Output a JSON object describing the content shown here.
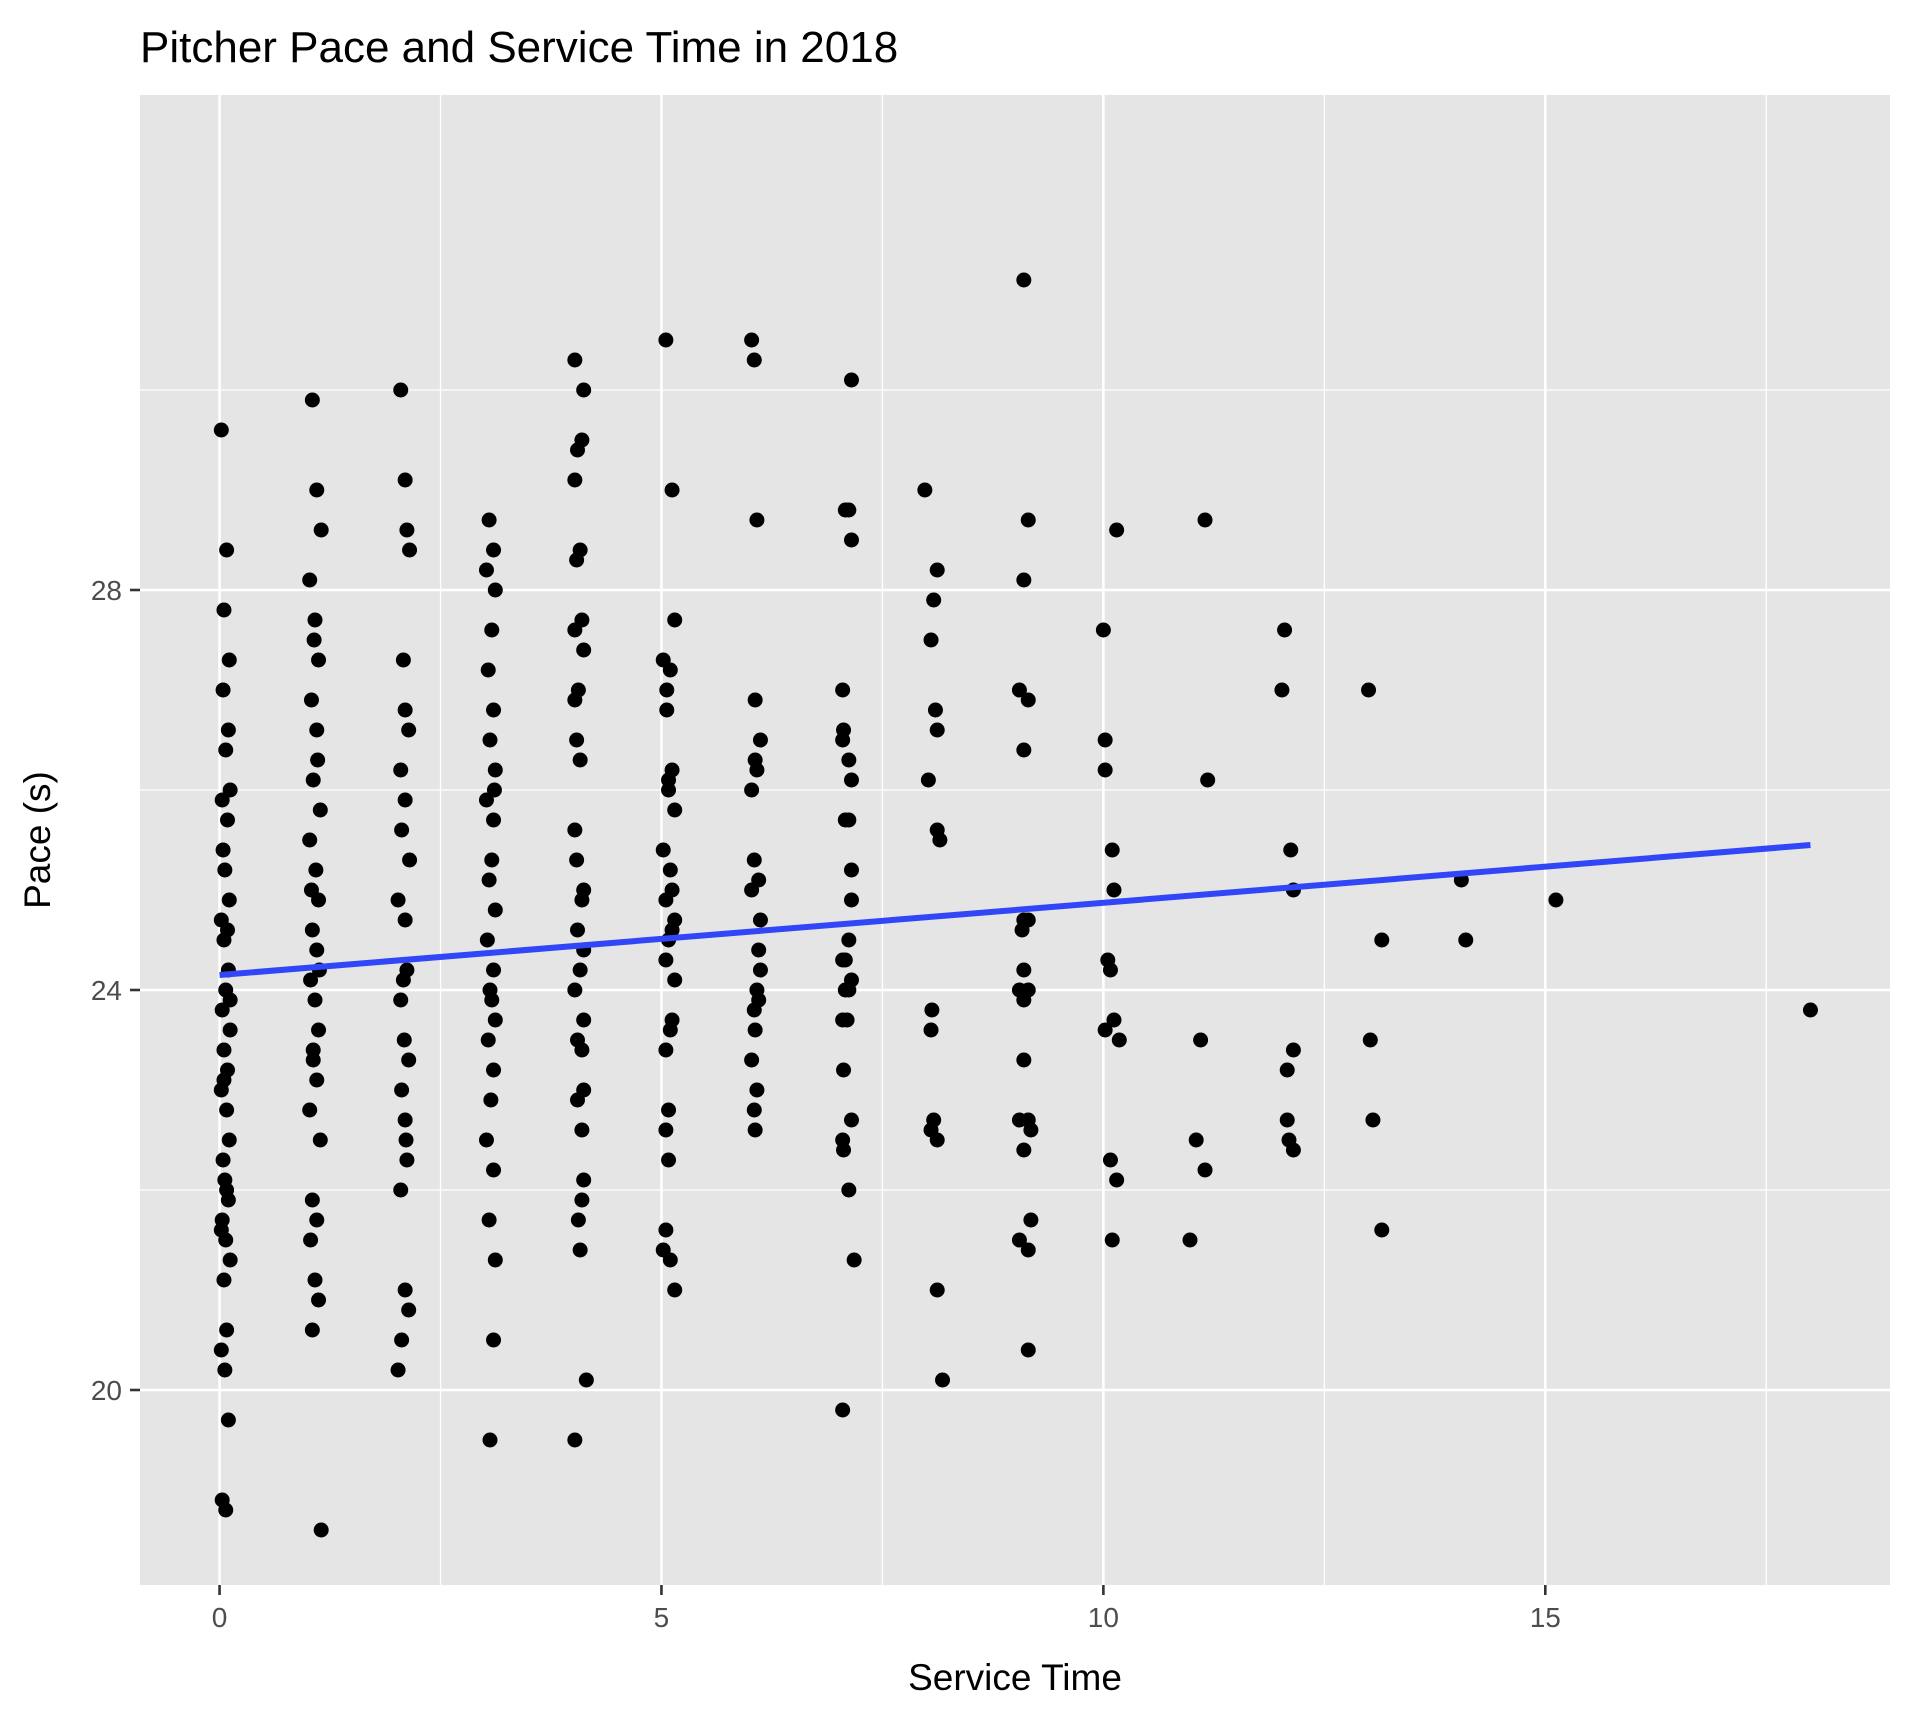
{
  "chart_data": {
    "type": "scatter",
    "title": "Pitcher Pace and Service Time in 2018",
    "xlabel": "Service Time",
    "ylabel": "Pace (s)",
    "xlim": [
      -0.9,
      18.9
    ],
    "ylim": [
      18.05,
      32.95
    ],
    "x_ticks": [
      0,
      5,
      10,
      15
    ],
    "x_tick_labels": [
      "0",
      "5",
      "10",
      "15"
    ],
    "y_ticks": [
      20,
      24,
      28
    ],
    "y_tick_labels": [
      "20",
      "24",
      "28"
    ],
    "grid": true,
    "legend": "none",
    "colors": {
      "panel": "#e5e5e5",
      "grid": "#ffffff",
      "points": "#000000",
      "fit": "#3146f7"
    },
    "fit_line": {
      "x": [
        0,
        18
      ],
      "y": [
        24.15,
        25.45
      ],
      "method": "lm"
    },
    "points": [
      [
        0.02,
        29.6
      ],
      [
        0.05,
        27.8
      ],
      [
        0.08,
        28.4
      ],
      [
        0.1,
        26.6
      ],
      [
        0.04,
        27.0
      ],
      [
        0.07,
        26.4
      ],
      [
        0.12,
        26.0
      ],
      [
        0.03,
        25.9
      ],
      [
        0.09,
        25.7
      ],
      [
        0.06,
        25.2
      ],
      [
        0.11,
        24.9
      ],
      [
        0.02,
        24.7
      ],
      [
        0.05,
        24.5
      ],
      [
        0.1,
        24.2
      ],
      [
        0.07,
        24.0
      ],
      [
        0.03,
        23.8
      ],
      [
        0.12,
        23.6
      ],
      [
        0.05,
        23.4
      ],
      [
        0.09,
        23.2
      ],
      [
        0.02,
        23.0
      ],
      [
        0.08,
        22.8
      ],
      [
        0.11,
        22.5
      ],
      [
        0.04,
        22.3
      ],
      [
        0.06,
        22.1
      ],
      [
        0.1,
        21.9
      ],
      [
        0.03,
        21.7
      ],
      [
        0.07,
        21.5
      ],
      [
        0.12,
        21.3
      ],
      [
        0.05,
        21.1
      ],
      [
        0.08,
        20.6
      ],
      [
        0.02,
        20.4
      ],
      [
        0.06,
        20.2
      ],
      [
        0.1,
        19.7
      ],
      [
        0.03,
        18.9
      ],
      [
        0.07,
        18.8
      ],
      [
        0.11,
        27.3
      ],
      [
        0.04,
        25.4
      ],
      [
        0.09,
        24.6
      ],
      [
        0.12,
        23.9
      ],
      [
        0.05,
        23.1
      ],
      [
        0.08,
        22.0
      ],
      [
        0.02,
        21.6
      ],
      [
        1.05,
        29.9
      ],
      [
        1.1,
        29.0
      ],
      [
        1.15,
        28.6
      ],
      [
        1.02,
        28.1
      ],
      [
        1.08,
        27.7
      ],
      [
        1.12,
        27.3
      ],
      [
        1.04,
        26.9
      ],
      [
        1.1,
        26.6
      ],
      [
        1.06,
        26.1
      ],
      [
        1.14,
        25.8
      ],
      [
        1.02,
        25.5
      ],
      [
        1.09,
        25.2
      ],
      [
        1.12,
        24.9
      ],
      [
        1.05,
        24.6
      ],
      [
        1.1,
        24.4
      ],
      [
        1.03,
        24.1
      ],
      [
        1.08,
        23.9
      ],
      [
        1.12,
        23.6
      ],
      [
        1.06,
        23.3
      ],
      [
        1.1,
        23.1
      ],
      [
        1.02,
        22.8
      ],
      [
        1.14,
        22.5
      ],
      [
        1.05,
        21.9
      ],
      [
        1.1,
        21.7
      ],
      [
        1.03,
        21.5
      ],
      [
        1.08,
        21.1
      ],
      [
        1.12,
        20.9
      ],
      [
        1.05,
        20.6
      ],
      [
        1.15,
        18.6
      ],
      [
        1.07,
        27.5
      ],
      [
        1.11,
        26.3
      ],
      [
        1.04,
        25.0
      ],
      [
        1.13,
        24.2
      ],
      [
        1.06,
        23.4
      ],
      [
        2.05,
        30.0
      ],
      [
        2.1,
        29.1
      ],
      [
        2.12,
        28.6
      ],
      [
        2.15,
        28.4
      ],
      [
        2.08,
        27.3
      ],
      [
        2.1,
        26.8
      ],
      [
        2.14,
        26.6
      ],
      [
        2.05,
        26.2
      ],
      [
        2.1,
        25.9
      ],
      [
        2.06,
        25.6
      ],
      [
        2.15,
        25.3
      ],
      [
        2.02,
        24.9
      ],
      [
        2.1,
        24.7
      ],
      [
        2.12,
        24.2
      ],
      [
        2.05,
        23.9
      ],
      [
        2.09,
        23.5
      ],
      [
        2.14,
        23.3
      ],
      [
        2.06,
        23.0
      ],
      [
        2.1,
        22.7
      ],
      [
        2.12,
        22.3
      ],
      [
        2.05,
        22.0
      ],
      [
        2.1,
        21.0
      ],
      [
        2.14,
        20.8
      ],
      [
        2.06,
        20.5
      ],
      [
        2.02,
        20.2
      ],
      [
        2.08,
        24.1
      ],
      [
        2.11,
        22.5
      ],
      [
        3.05,
        28.7
      ],
      [
        3.1,
        28.4
      ],
      [
        3.02,
        28.2
      ],
      [
        3.12,
        28.0
      ],
      [
        3.08,
        27.6
      ],
      [
        3.04,
        27.2
      ],
      [
        3.1,
        26.8
      ],
      [
        3.06,
        26.5
      ],
      [
        3.12,
        26.2
      ],
      [
        3.02,
        25.9
      ],
      [
        3.1,
        25.7
      ],
      [
        3.08,
        25.3
      ],
      [
        3.05,
        25.1
      ],
      [
        3.12,
        24.8
      ],
      [
        3.03,
        24.5
      ],
      [
        3.1,
        24.2
      ],
      [
        3.06,
        24.0
      ],
      [
        3.12,
        23.7
      ],
      [
        3.04,
        23.5
      ],
      [
        3.1,
        23.2
      ],
      [
        3.07,
        22.9
      ],
      [
        3.02,
        22.5
      ],
      [
        3.1,
        22.2
      ],
      [
        3.05,
        21.7
      ],
      [
        3.12,
        21.3
      ],
      [
        3.1,
        20.5
      ],
      [
        3.06,
        19.5
      ],
      [
        3.08,
        23.9
      ],
      [
        3.11,
        26.0
      ],
      [
        4.02,
        30.3
      ],
      [
        4.12,
        30.0
      ],
      [
        4.1,
        29.5
      ],
      [
        4.05,
        29.4
      ],
      [
        4.02,
        29.1
      ],
      [
        4.08,
        28.4
      ],
      [
        4.04,
        28.3
      ],
      [
        4.1,
        27.7
      ],
      [
        4.02,
        27.6
      ],
      [
        4.12,
        27.4
      ],
      [
        4.06,
        27.0
      ],
      [
        4.02,
        26.9
      ],
      [
        4.04,
        26.5
      ],
      [
        4.02,
        25.6
      ],
      [
        4.04,
        25.3
      ],
      [
        4.12,
        25.0
      ],
      [
        4.1,
        24.9
      ],
      [
        4.05,
        24.6
      ],
      [
        4.12,
        24.4
      ],
      [
        4.08,
        24.2
      ],
      [
        4.02,
        24.0
      ],
      [
        4.12,
        23.7
      ],
      [
        4.05,
        23.5
      ],
      [
        4.1,
        23.4
      ],
      [
        4.12,
        23.0
      ],
      [
        4.05,
        22.9
      ],
      [
        4.1,
        22.6
      ],
      [
        4.12,
        22.1
      ],
      [
        4.06,
        21.7
      ],
      [
        4.08,
        21.4
      ],
      [
        4.15,
        20.1
      ],
      [
        4.02,
        19.5
      ],
      [
        4.08,
        26.3
      ],
      [
        4.1,
        21.9
      ],
      [
        5.05,
        30.5
      ],
      [
        5.12,
        29.0
      ],
      [
        5.15,
        27.7
      ],
      [
        5.02,
        27.3
      ],
      [
        5.1,
        27.2
      ],
      [
        5.06,
        26.8
      ],
      [
        5.12,
        26.2
      ],
      [
        5.08,
        26.0
      ],
      [
        5.15,
        25.8
      ],
      [
        5.02,
        25.4
      ],
      [
        5.1,
        25.2
      ],
      [
        5.12,
        25.0
      ],
      [
        5.05,
        24.9
      ],
      [
        5.15,
        24.7
      ],
      [
        5.08,
        24.5
      ],
      [
        5.05,
        24.3
      ],
      [
        5.15,
        24.1
      ],
      [
        5.12,
        23.7
      ],
      [
        5.1,
        23.6
      ],
      [
        5.05,
        23.4
      ],
      [
        5.08,
        22.8
      ],
      [
        5.05,
        22.6
      ],
      [
        5.08,
        22.3
      ],
      [
        5.05,
        21.6
      ],
      [
        5.02,
        21.4
      ],
      [
        5.1,
        21.3
      ],
      [
        5.15,
        21.0
      ],
      [
        5.08,
        26.1
      ],
      [
        5.12,
        24.6
      ],
      [
        5.06,
        27.0
      ],
      [
        6.02,
        30.5
      ],
      [
        6.05,
        30.3
      ],
      [
        6.08,
        28.7
      ],
      [
        6.06,
        26.9
      ],
      [
        6.12,
        26.5
      ],
      [
        6.06,
        26.3
      ],
      [
        6.02,
        26.0
      ],
      [
        6.1,
        25.1
      ],
      [
        6.05,
        25.3
      ],
      [
        6.02,
        25.0
      ],
      [
        6.12,
        24.7
      ],
      [
        6.1,
        24.4
      ],
      [
        6.12,
        24.2
      ],
      [
        6.08,
        24.0
      ],
      [
        6.05,
        23.8
      ],
      [
        6.06,
        23.6
      ],
      [
        6.02,
        23.3
      ],
      [
        6.08,
        23.0
      ],
      [
        6.05,
        22.8
      ],
      [
        6.06,
        22.6
      ],
      [
        6.08,
        26.2
      ],
      [
        6.1,
        23.9
      ],
      [
        7.15,
        30.1
      ],
      [
        7.08,
        28.8
      ],
      [
        7.12,
        28.8
      ],
      [
        7.15,
        28.5
      ],
      [
        7.05,
        27.0
      ],
      [
        7.06,
        26.6
      ],
      [
        7.05,
        26.5
      ],
      [
        7.12,
        26.3
      ],
      [
        7.15,
        26.1
      ],
      [
        7.08,
        25.7
      ],
      [
        7.12,
        25.7
      ],
      [
        7.15,
        25.2
      ],
      [
        7.15,
        24.9
      ],
      [
        7.12,
        24.5
      ],
      [
        7.08,
        24.3
      ],
      [
        7.05,
        24.3
      ],
      [
        7.15,
        24.1
      ],
      [
        7.12,
        24.0
      ],
      [
        7.08,
        24.0
      ],
      [
        7.1,
        23.7
      ],
      [
        7.05,
        23.7
      ],
      [
        7.06,
        23.2
      ],
      [
        7.15,
        22.7
      ],
      [
        7.05,
        22.5
      ],
      [
        7.06,
        22.4
      ],
      [
        7.12,
        22.0
      ],
      [
        7.18,
        21.3
      ],
      [
        7.05,
        19.8
      ],
      [
        7.98,
        29.0
      ],
      [
        8.12,
        28.2
      ],
      [
        8.08,
        27.9
      ],
      [
        8.05,
        27.5
      ],
      [
        8.1,
        26.8
      ],
      [
        8.12,
        26.6
      ],
      [
        8.02,
        26.1
      ],
      [
        8.12,
        25.6
      ],
      [
        8.15,
        25.5
      ],
      [
        8.06,
        23.8
      ],
      [
        8.05,
        23.6
      ],
      [
        8.08,
        22.7
      ],
      [
        8.05,
        22.6
      ],
      [
        8.12,
        22.5
      ],
      [
        8.12,
        21.0
      ],
      [
        8.18,
        20.1
      ],
      [
        9.1,
        31.1
      ],
      [
        9.15,
        28.7
      ],
      [
        9.1,
        28.1
      ],
      [
        9.05,
        27.0
      ],
      [
        9.15,
        26.9
      ],
      [
        9.1,
        26.4
      ],
      [
        9.1,
        24.7
      ],
      [
        9.15,
        24.7
      ],
      [
        9.08,
        24.6
      ],
      [
        9.1,
        24.2
      ],
      [
        9.05,
        24.0
      ],
      [
        9.15,
        24.0
      ],
      [
        9.1,
        23.9
      ],
      [
        9.1,
        23.3
      ],
      [
        9.05,
        22.7
      ],
      [
        9.15,
        22.7
      ],
      [
        9.18,
        22.6
      ],
      [
        9.1,
        22.4
      ],
      [
        9.18,
        21.7
      ],
      [
        9.05,
        21.5
      ],
      [
        9.15,
        21.4
      ],
      [
        9.15,
        20.4
      ],
      [
        10.0,
        27.6
      ],
      [
        10.02,
        26.5
      ],
      [
        10.02,
        26.2
      ],
      [
        10.15,
        28.6
      ],
      [
        10.1,
        25.4
      ],
      [
        10.12,
        25.0
      ],
      [
        10.05,
        24.3
      ],
      [
        10.08,
        24.2
      ],
      [
        10.12,
        23.7
      ],
      [
        10.02,
        23.6
      ],
      [
        10.18,
        23.5
      ],
      [
        10.08,
        22.3
      ],
      [
        10.15,
        22.1
      ],
      [
        10.1,
        21.5
      ],
      [
        11.15,
        28.7
      ],
      [
        11.18,
        26.1
      ],
      [
        11.1,
        23.5
      ],
      [
        11.05,
        22.5
      ],
      [
        11.15,
        22.2
      ],
      [
        10.98,
        21.5
      ],
      [
        12.05,
        27.6
      ],
      [
        12.02,
        27.0
      ],
      [
        12.12,
        25.4
      ],
      [
        12.15,
        25.0
      ],
      [
        12.15,
        23.4
      ],
      [
        12.08,
        23.2
      ],
      [
        12.08,
        22.7
      ],
      [
        12.1,
        22.5
      ],
      [
        12.15,
        22.4
      ],
      [
        13.0,
        27.0
      ],
      [
        13.15,
        24.5
      ],
      [
        13.02,
        23.5
      ],
      [
        13.05,
        22.7
      ],
      [
        13.15,
        21.6
      ],
      [
        14.05,
        25.1
      ],
      [
        14.1,
        24.5
      ],
      [
        15.12,
        24.9
      ],
      [
        18.0,
        23.8
      ]
    ]
  }
}
